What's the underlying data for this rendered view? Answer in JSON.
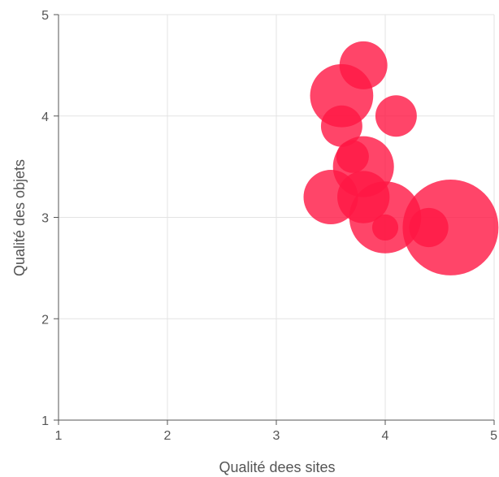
{
  "chart_data": {
    "type": "scatter",
    "subtype": "bubble",
    "title": "",
    "xlabel": "Qualité dees sites",
    "ylabel": "Qualité des objets",
    "xlim": [
      1,
      5
    ],
    "ylim": [
      1,
      5
    ],
    "xticks": [
      "1",
      "2",
      "3",
      "4",
      "5"
    ],
    "yticks": [
      "1",
      "2",
      "3",
      "4",
      "5"
    ],
    "grid": true,
    "legend": "none",
    "colors": {
      "bubble": "#ff1744",
      "bubble_opacity": 0.8,
      "grid": "#e3e3e3",
      "axis": "#555555",
      "text": "#555555"
    },
    "series": [
      {
        "points": [
          {
            "x": 3.8,
            "y": 4.5,
            "r": 0.22
          },
          {
            "x": 3.6,
            "y": 4.2,
            "r": 0.29
          },
          {
            "x": 4.1,
            "y": 4.0,
            "r": 0.19
          },
          {
            "x": 3.6,
            "y": 3.9,
            "r": 0.19
          },
          {
            "x": 3.8,
            "y": 3.5,
            "r": 0.28
          },
          {
            "x": 3.7,
            "y": 3.6,
            "r": 0.15
          },
          {
            "x": 3.5,
            "y": 3.2,
            "r": 0.25
          },
          {
            "x": 3.8,
            "y": 3.2,
            "r": 0.24
          },
          {
            "x": 4.0,
            "y": 3.0,
            "r": 0.33
          },
          {
            "x": 4.6,
            "y": 2.9,
            "r": 0.44
          },
          {
            "x": 4.4,
            "y": 2.9,
            "r": 0.18
          },
          {
            "x": 4.0,
            "y": 2.9,
            "r": 0.12
          }
        ]
      }
    ]
  }
}
